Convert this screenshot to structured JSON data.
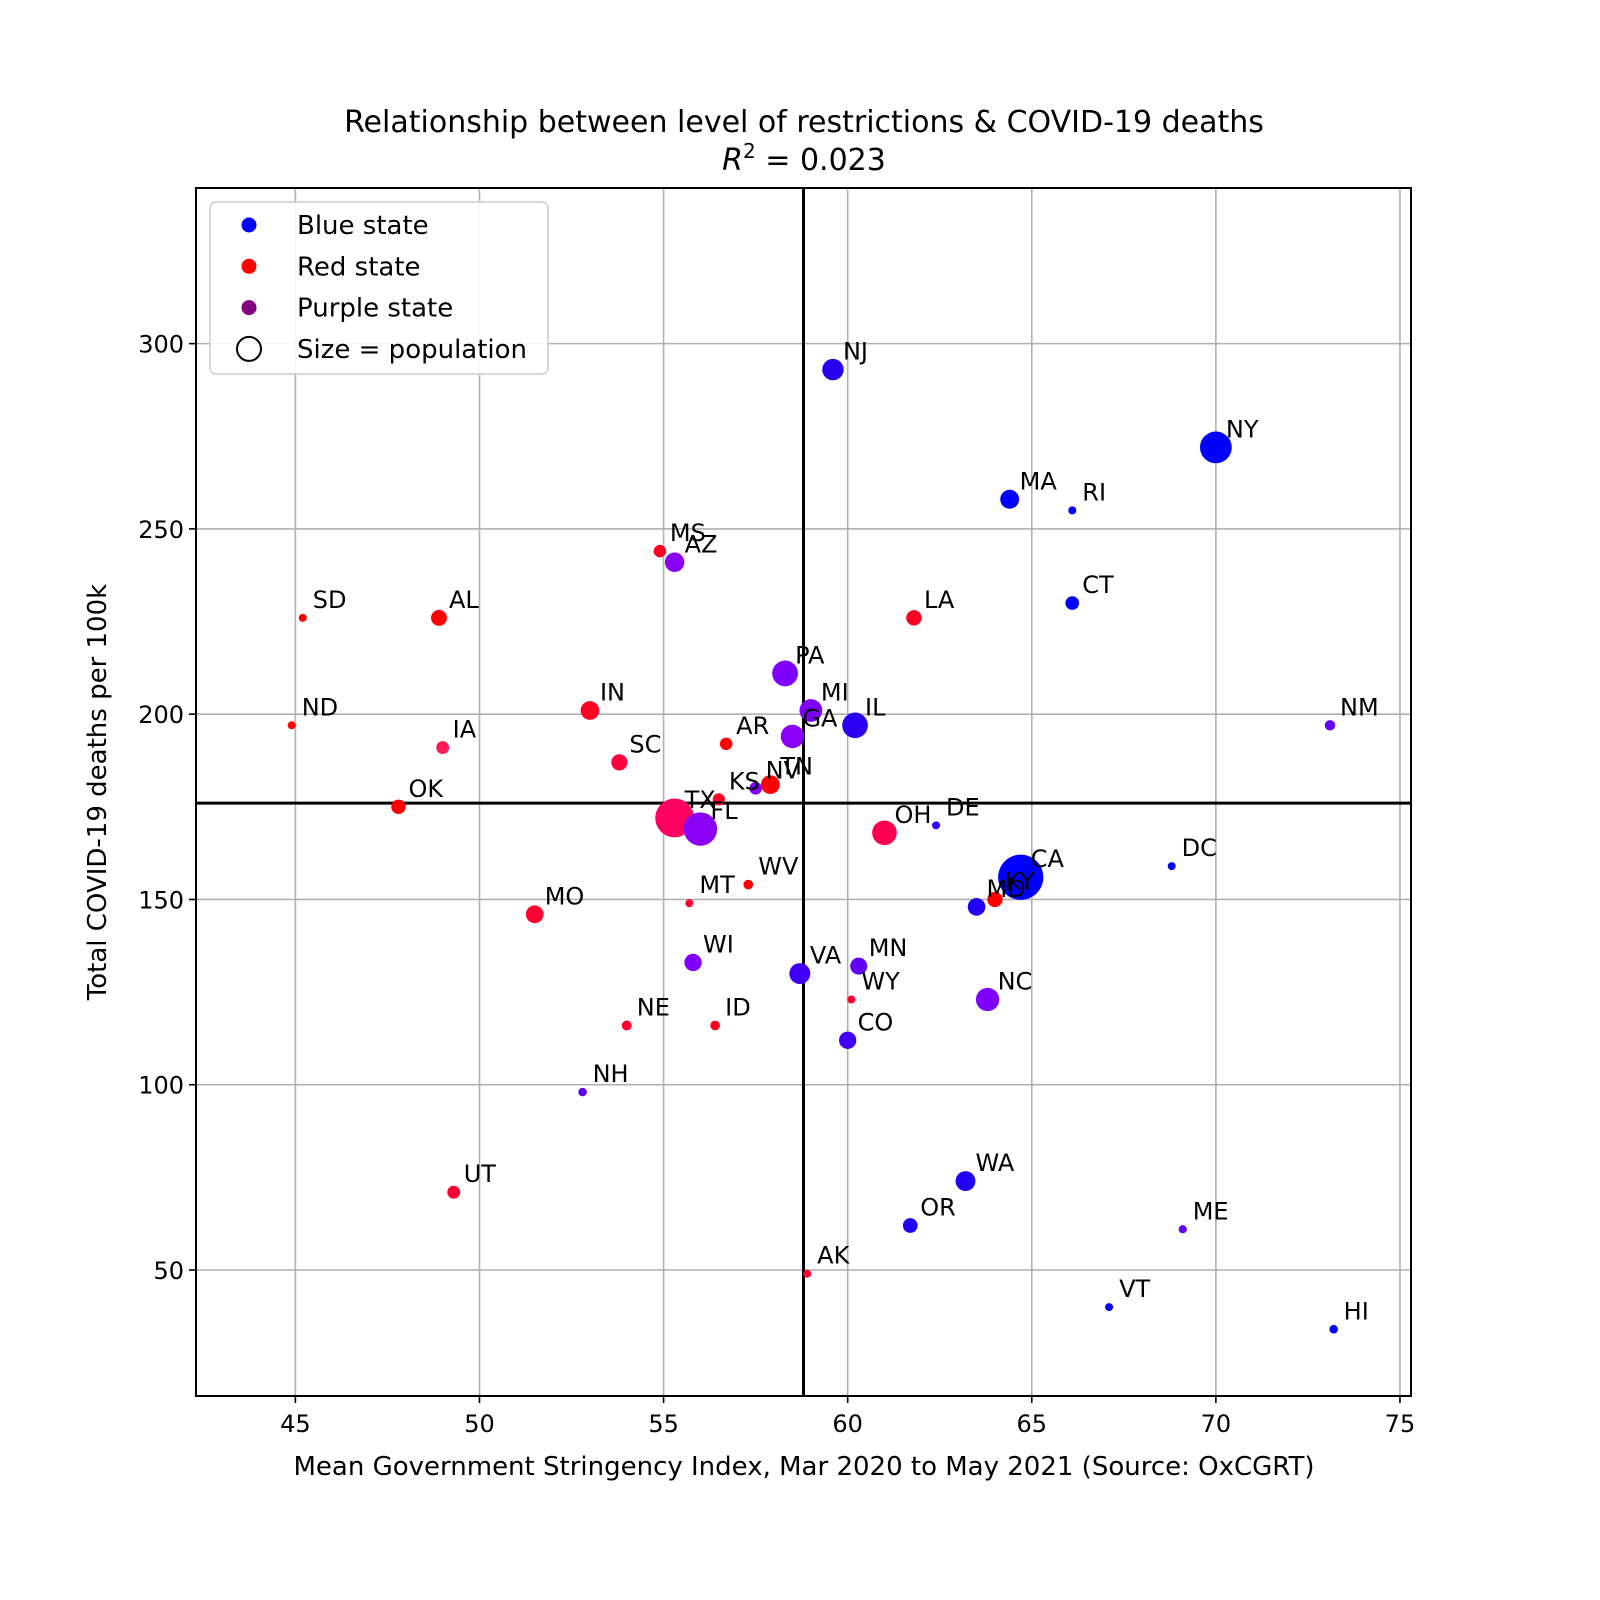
{
  "chart_data": {
    "type": "scatter",
    "title": "Relationship between level of restrictions & COVID-19 deaths",
    "subtitle": {
      "lhs": "R",
      "sup": "2",
      "rhs": " = 0.023"
    },
    "xlabel": "Mean Government Stringency Index, Mar 2020 to May 2021 (Source: OxCGRT)",
    "ylabel": "Total COVID-19 deaths per 100k",
    "xlim": [
      42.3,
      75.3
    ],
    "ylim": [
      16,
      342
    ],
    "xticks": [
      45,
      50,
      55,
      60,
      65,
      70,
      75
    ],
    "yticks": [
      50,
      100,
      150,
      200,
      250,
      300
    ],
    "grid": true,
    "ref_lines": {
      "x": 58.8,
      "y": 176
    },
    "legend": {
      "placement": "top-left",
      "entries": [
        {
          "label": "Blue state",
          "color": "#0000ff",
          "marker": "dot"
        },
        {
          "label": "Red state",
          "color": "#ff0000",
          "marker": "dot"
        },
        {
          "label": "Purple state",
          "color": "#800080",
          "marker": "dot"
        },
        {
          "label": "Size = population",
          "color": "#000000",
          "marker": "circle"
        }
      ]
    },
    "size_encoding": "population (millions)",
    "points": [
      {
        "label": "NJ",
        "x": 59.6,
        "y": 293,
        "pop": 8.9,
        "color": "#2a00f0"
      },
      {
        "label": "NY",
        "x": 70.0,
        "y": 272,
        "pop": 19.5,
        "color": "#0000ff"
      },
      {
        "label": "MA",
        "x": 64.4,
        "y": 258,
        "pop": 6.9,
        "color": "#0000ff"
      },
      {
        "label": "RI",
        "x": 66.1,
        "y": 255,
        "pop": 1.1,
        "color": "#0000ff"
      },
      {
        "label": "MS",
        "x": 54.9,
        "y": 244,
        "pop": 3.0,
        "color": "#ff0022"
      },
      {
        "label": "AZ",
        "x": 55.3,
        "y": 241,
        "pop": 7.3,
        "color": "#8a00f5"
      },
      {
        "label": "CT",
        "x": 66.1,
        "y": 230,
        "pop": 3.6,
        "color": "#0000ff"
      },
      {
        "label": "SD",
        "x": 45.2,
        "y": 226,
        "pop": 0.9,
        "color": "#ff0000"
      },
      {
        "label": "AL",
        "x": 48.9,
        "y": 226,
        "pop": 4.9,
        "color": "#ff0000"
      },
      {
        "label": "LA",
        "x": 61.8,
        "y": 226,
        "pop": 4.6,
        "color": "#ff0022"
      },
      {
        "label": "PA",
        "x": 58.3,
        "y": 211,
        "pop": 12.8,
        "color": "#8000ff"
      },
      {
        "label": "MI",
        "x": 59.0,
        "y": 201,
        "pop": 10.0,
        "color": "#8000ff"
      },
      {
        "label": "IN",
        "x": 53.0,
        "y": 201,
        "pop": 6.7,
        "color": "#ff0022"
      },
      {
        "label": "IL",
        "x": 60.2,
        "y": 197,
        "pop": 12.7,
        "color": "#2a00f0"
      },
      {
        "label": "ND",
        "x": 44.9,
        "y": 197,
        "pop": 0.8,
        "color": "#ff0000"
      },
      {
        "label": "NM",
        "x": 73.1,
        "y": 197,
        "pop": 2.1,
        "color": "#6000f5"
      },
      {
        "label": "GA",
        "x": 58.5,
        "y": 194,
        "pop": 10.6,
        "color": "#8a00f5"
      },
      {
        "label": "AR",
        "x": 56.7,
        "y": 192,
        "pop": 3.0,
        "color": "#ff0000"
      },
      {
        "label": "IA",
        "x": 49.0,
        "y": 191,
        "pop": 3.2,
        "color": "#ff1a55"
      },
      {
        "label": "SC",
        "x": 53.8,
        "y": 187,
        "pop": 5.1,
        "color": "#ff0040"
      },
      {
        "label": "TN",
        "x": 57.9,
        "y": 181,
        "pop": 6.8,
        "color": "#ff0000"
      },
      {
        "label": "NV",
        "x": 57.5,
        "y": 180,
        "pop": 3.1,
        "color": "#8000ff"
      },
      {
        "label": "KS",
        "x": 56.5,
        "y": 177,
        "pop": 2.9,
        "color": "#ff0022"
      },
      {
        "label": "OK",
        "x": 47.8,
        "y": 175,
        "pop": 4.0,
        "color": "#ff0000"
      },
      {
        "label": "TX",
        "x": 55.3,
        "y": 172,
        "pop": 29.0,
        "color": "#ff0060"
      },
      {
        "label": "FL",
        "x": 56.0,
        "y": 169,
        "pop": 21.5,
        "color": "#8a00f5"
      },
      {
        "label": "OH",
        "x": 61.0,
        "y": 168,
        "pop": 11.7,
        "color": "#ff0050"
      },
      {
        "label": "DE",
        "x": 62.4,
        "y": 170,
        "pop": 1.0,
        "color": "#3300ff"
      },
      {
        "label": "CA",
        "x": 64.7,
        "y": 156,
        "pop": 39.5,
        "color": "#0000ff"
      },
      {
        "label": "DC",
        "x": 68.8,
        "y": 159,
        "pop": 0.7,
        "color": "#0000ff"
      },
      {
        "label": "WV",
        "x": 57.3,
        "y": 154,
        "pop": 1.8,
        "color": "#ff0000"
      },
      {
        "label": "KY",
        "x": 64.0,
        "y": 150,
        "pop": 4.5,
        "color": "#ff0000"
      },
      {
        "label": "MD",
        "x": 63.5,
        "y": 148,
        "pop": 6.0,
        "color": "#2000f5"
      },
      {
        "label": "MT",
        "x": 55.7,
        "y": 149,
        "pop": 1.1,
        "color": "#ff0033"
      },
      {
        "label": "MO",
        "x": 51.5,
        "y": 146,
        "pop": 6.1,
        "color": "#ff0033"
      },
      {
        "label": "WI",
        "x": 55.8,
        "y": 133,
        "pop": 5.8,
        "color": "#8000ff"
      },
      {
        "label": "MN",
        "x": 60.3,
        "y": 132,
        "pop": 5.6,
        "color": "#6000f5"
      },
      {
        "label": "VA",
        "x": 58.7,
        "y": 130,
        "pop": 8.5,
        "color": "#4000f5"
      },
      {
        "label": "NC",
        "x": 63.8,
        "y": 123,
        "pop": 10.5,
        "color": "#8000ff"
      },
      {
        "label": "WY",
        "x": 60.1,
        "y": 123,
        "pop": 0.6,
        "color": "#ff0033"
      },
      {
        "label": "NE",
        "x": 54.0,
        "y": 116,
        "pop": 1.9,
        "color": "#ff0033"
      },
      {
        "label": "ID",
        "x": 56.4,
        "y": 116,
        "pop": 1.8,
        "color": "#ff0022"
      },
      {
        "label": "CO",
        "x": 60.0,
        "y": 112,
        "pop": 5.8,
        "color": "#4000f5"
      },
      {
        "label": "NH",
        "x": 52.8,
        "y": 98,
        "pop": 1.4,
        "color": "#6000f5"
      },
      {
        "label": "WA",
        "x": 63.2,
        "y": 74,
        "pop": 7.6,
        "color": "#2000f5"
      },
      {
        "label": "UT",
        "x": 49.3,
        "y": 71,
        "pop": 3.2,
        "color": "#ff0033"
      },
      {
        "label": "OR",
        "x": 61.7,
        "y": 62,
        "pop": 4.2,
        "color": "#2000f5"
      },
      {
        "label": "ME",
        "x": 69.1,
        "y": 61,
        "pop": 1.3,
        "color": "#6000f5"
      },
      {
        "label": "AK",
        "x": 58.9,
        "y": 49,
        "pop": 0.7,
        "color": "#ff0033"
      },
      {
        "label": "VT",
        "x": 67.1,
        "y": 40,
        "pop": 0.6,
        "color": "#0000ff"
      },
      {
        "label": "HI",
        "x": 73.2,
        "y": 34,
        "pop": 1.4,
        "color": "#0000ff"
      }
    ]
  }
}
